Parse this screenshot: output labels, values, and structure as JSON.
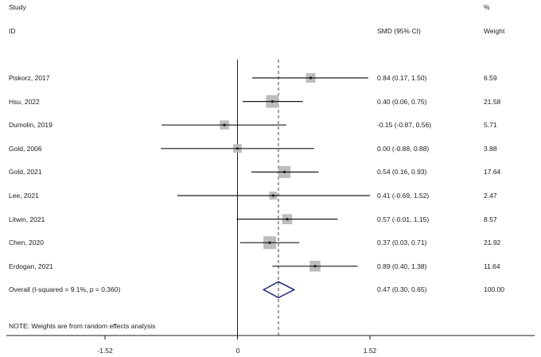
{
  "header": {
    "study": "Study",
    "id": "ID",
    "effect": "SMD (95% CI)",
    "weight_pct": "%",
    "weight": "Weight"
  },
  "note": "NOTE: Weights are from random effects analysis",
  "colors": {
    "box": "#bdbdbd",
    "line": "#1a1a1a",
    "diamond": "#1f2a7a",
    "ref": "#444444"
  },
  "chart_data": {
    "type": "forest",
    "xlim": [
      -1.52,
      1.52
    ],
    "xticks": [
      -1.52,
      0,
      1.52
    ],
    "xtick_labels": [
      "-1.52",
      "0",
      "1.52"
    ],
    "null_line": 0,
    "studies": [
      {
        "name": "Piskorz, 2017",
        "es": 0.84,
        "lo": 0.17,
        "hi": 1.5,
        "ci_text": "0.84 (0.17, 1.50)",
        "weight": "6.59"
      },
      {
        "name": "Hsu, 2022",
        "es": 0.4,
        "lo": 0.06,
        "hi": 0.75,
        "ci_text": "0.40 (0.06, 0.75)",
        "weight": "21.58"
      },
      {
        "name": "Dumolin, 2019",
        "es": -0.15,
        "lo": -0.87,
        "hi": 0.56,
        "ci_text": "-0.15 (-0.87, 0.56)",
        "weight": "5.71"
      },
      {
        "name": "Gold, 2006",
        "es": 0.0,
        "lo": -0.88,
        "hi": 0.88,
        "ci_text": "0.00 (-0.88, 0.88)",
        "weight": "3.88"
      },
      {
        "name": "Gold, 2021",
        "es": 0.54,
        "lo": 0.16,
        "hi": 0.93,
        "ci_text": "0.54 (0.16, 0.93)",
        "weight": "17.64"
      },
      {
        "name": "Lee, 2021",
        "es": 0.41,
        "lo": -0.69,
        "hi": 1.52,
        "ci_text": "0.41 (-0.69, 1.52)",
        "weight": "2.47"
      },
      {
        "name": "Litwin, 2021",
        "es": 0.57,
        "lo": -0.01,
        "hi": 1.15,
        "ci_text": "0.57 (-0.01, 1.15)",
        "weight": "8.57"
      },
      {
        "name": "Chen, 2020",
        "es": 0.37,
        "lo": 0.03,
        "hi": 0.71,
        "ci_text": "0.37 (0.03, 0.71)",
        "weight": "21.92"
      },
      {
        "name": "Erdogan, 2021",
        "es": 0.89,
        "lo": 0.4,
        "hi": 1.38,
        "ci_text": "0.89 (0.40, 1.38)",
        "weight": "11.64"
      }
    ],
    "overall": {
      "name": "Overall  (I-squared = 9.1%, p = 0.360)",
      "es": 0.47,
      "lo": 0.3,
      "hi": 0.65,
      "ci_text": "0.47 (0.30, 0.65)",
      "weight": "100.00"
    }
  }
}
